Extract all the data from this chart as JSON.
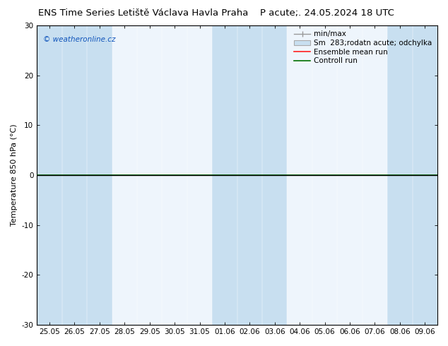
{
  "title_left": "ENS Time Series Letiště Václava Havla Praha",
  "title_right": "P acute;. 24.05.2024 18 UTC",
  "ylabel": "Temperature 850 hPa (°C)",
  "ylim": [
    -30,
    30
  ],
  "yticks": [
    -30,
    -20,
    -10,
    0,
    10,
    20,
    30
  ],
  "x_labels": [
    "25.05",
    "26.05",
    "27.05",
    "28.05",
    "29.05",
    "30.05",
    "31.05",
    "01.06",
    "02.06",
    "03.06",
    "04.06",
    "05.06",
    "06.06",
    "07.06",
    "08.06",
    "09.06"
  ],
  "bg_color": "#ffffff",
  "plot_bg_light": "#eef5fc",
  "band_color_dark": "#c8dff0",
  "band_indices_dark": [
    0,
    1,
    2,
    7,
    8,
    9,
    14,
    15
  ],
  "ensemble_mean_color": "#ff2020",
  "control_run_color": "#007000",
  "zero_line_color": "#000000",
  "watermark": "© weatheronline.cz",
  "title_fontsize": 9.5,
  "axis_fontsize": 8,
  "tick_fontsize": 7.5,
  "legend_fontsize": 7.5
}
